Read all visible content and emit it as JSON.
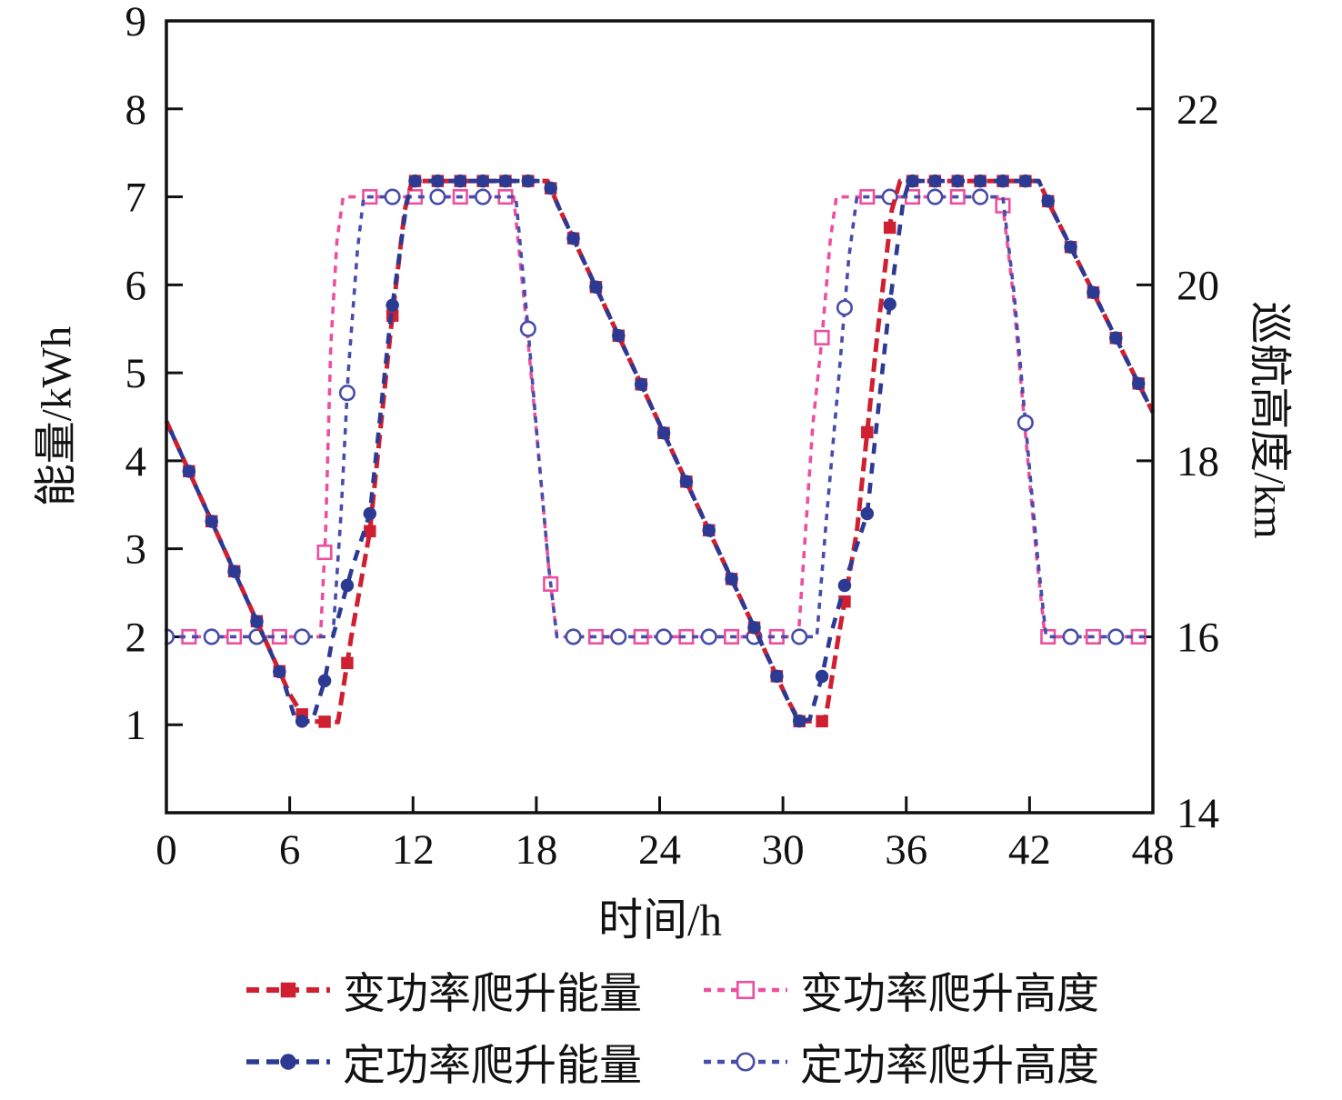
{
  "figure": {
    "background": "#ffffff",
    "axis_color": "#111111",
    "text_color": "#111111"
  },
  "chart_data": {
    "type": "line",
    "title": "",
    "xlabel": "时间/h",
    "ylabel_left": "能量/kWh",
    "ylabel_right": "巡航高度/km",
    "xlim": [
      0,
      48
    ],
    "xticks": [
      0,
      6,
      12,
      18,
      24,
      30,
      36,
      42,
      48
    ],
    "ylim_left": [
      0,
      9
    ],
    "yticks_left": [
      1,
      2,
      3,
      4,
      5,
      6,
      7,
      8,
      9
    ],
    "ylim_right": [
      14,
      23
    ],
    "yticks_right": [
      14,
      16,
      18,
      20,
      22
    ],
    "grid": false,
    "legend_position": "below",
    "series": [
      {
        "name": "变功率爬升能量",
        "axis": "left",
        "color": "#cf1f30",
        "dash": "15 7",
        "width": 5,
        "dashoffset": 0,
        "marker": {
          "shape": "square",
          "open": false,
          "every": 1.1,
          "phase": 1.1,
          "size": 13.5
        },
        "points": [
          [
            0,
            4.45
          ],
          [
            6.0,
            1.35
          ],
          [
            6.8,
            1.04
          ],
          [
            8.35,
            1.03
          ],
          [
            9.0,
            2.0
          ],
          [
            9.9,
            3.2
          ],
          [
            10.9,
            5.45
          ],
          [
            11.6,
            6.85
          ],
          [
            11.95,
            7.18
          ],
          [
            18.55,
            7.18
          ],
          [
            19.1,
            6.88
          ],
          [
            30.2,
            1.3
          ],
          [
            30.8,
            1.04
          ],
          [
            32.05,
            1.04
          ],
          [
            32.7,
            2.0
          ],
          [
            33.6,
            3.2
          ],
          [
            34.6,
            5.45
          ],
          [
            35.3,
            6.85
          ],
          [
            35.7,
            7.18
          ],
          [
            42.45,
            7.18
          ],
          [
            43.0,
            6.9
          ],
          [
            48,
            4.55
          ]
        ]
      },
      {
        "name": "变功率爬升高度",
        "axis": "right",
        "color": "#ec4f9e",
        "dash": "8 7",
        "width": 3.6,
        "dashoffset": 0,
        "marker": {
          "shape": "square",
          "open": true,
          "every": 2.2,
          "phase": 1.1,
          "size": 14.5
        },
        "points": [
          [
            0,
            16
          ],
          [
            7.5,
            16
          ],
          [
            7.75,
            17.2
          ],
          [
            8.0,
            19.3
          ],
          [
            8.3,
            20.5
          ],
          [
            8.6,
            21
          ],
          [
            16.9,
            21
          ],
          [
            17.5,
            19.6
          ],
          [
            18.1,
            18.1
          ],
          [
            18.6,
            16.8
          ],
          [
            19.0,
            16
          ],
          [
            30.75,
            16
          ],
          [
            31.1,
            17.2
          ],
          [
            31.45,
            18.4
          ],
          [
            31.9,
            19.4
          ],
          [
            32.3,
            20.5
          ],
          [
            32.6,
            21
          ],
          [
            40.65,
            21
          ],
          [
            41.2,
            19.9
          ],
          [
            41.8,
            18.3
          ],
          [
            42.3,
            17.0
          ],
          [
            42.75,
            16
          ],
          [
            48,
            16
          ]
        ]
      },
      {
        "name": "定功率爬升能量",
        "axis": "left",
        "color": "#2c3a93",
        "dash": "12 10",
        "width": 4.6,
        "dashoffset": 11,
        "marker": {
          "shape": "circle",
          "open": false,
          "every": 1.1,
          "phase": 1.1,
          "size": 14.5
        },
        "points": [
          [
            0,
            4.45
          ],
          [
            5.7,
            1.5
          ],
          [
            6.3,
            1.04
          ],
          [
            7.1,
            1.04
          ],
          [
            7.7,
            1.5
          ],
          [
            8.1,
            2.0
          ],
          [
            9.0,
            2.75
          ],
          [
            9.9,
            3.4
          ],
          [
            10.9,
            5.6
          ],
          [
            11.7,
            6.95
          ],
          [
            12.05,
            7.18
          ],
          [
            18.55,
            7.18
          ],
          [
            19.1,
            6.88
          ],
          [
            30.2,
            1.3
          ],
          [
            30.75,
            1.04
          ],
          [
            31.3,
            1.06
          ],
          [
            31.9,
            1.55
          ],
          [
            32.3,
            2.0
          ],
          [
            33.2,
            2.75
          ],
          [
            34.1,
            3.4
          ],
          [
            35.1,
            5.6
          ],
          [
            35.85,
            6.95
          ],
          [
            36.15,
            7.18
          ],
          [
            42.45,
            7.18
          ],
          [
            43.0,
            6.9
          ],
          [
            48,
            4.55
          ]
        ]
      },
      {
        "name": "定功率爬升高度",
        "axis": "right",
        "color": "#474da8",
        "dash": "7 7",
        "width": 3.6,
        "dashoffset": 0,
        "marker": {
          "shape": "circle",
          "open": true,
          "every": 2.2,
          "phase": 0,
          "size": 15.5
        },
        "points": [
          [
            0,
            16
          ],
          [
            8.1,
            16
          ],
          [
            8.5,
            17.4
          ],
          [
            8.85,
            19.0
          ],
          [
            9.3,
            20.4
          ],
          [
            9.6,
            21
          ],
          [
            17.0,
            21
          ],
          [
            17.6,
            19.5
          ],
          [
            18.1,
            18.1
          ],
          [
            18.6,
            16.8
          ],
          [
            19.0,
            16
          ],
          [
            31.65,
            16
          ],
          [
            32.1,
            17.3
          ],
          [
            32.7,
            18.9
          ],
          [
            33.2,
            20.3
          ],
          [
            33.6,
            21
          ],
          [
            40.7,
            21
          ],
          [
            41.25,
            19.9
          ],
          [
            41.85,
            18.3
          ],
          [
            42.35,
            17.0
          ],
          [
            42.8,
            16
          ],
          [
            48,
            16
          ]
        ]
      }
    ]
  },
  "legend": {
    "rows": [
      [
        0,
        1
      ],
      [
        2,
        3
      ]
    ]
  }
}
